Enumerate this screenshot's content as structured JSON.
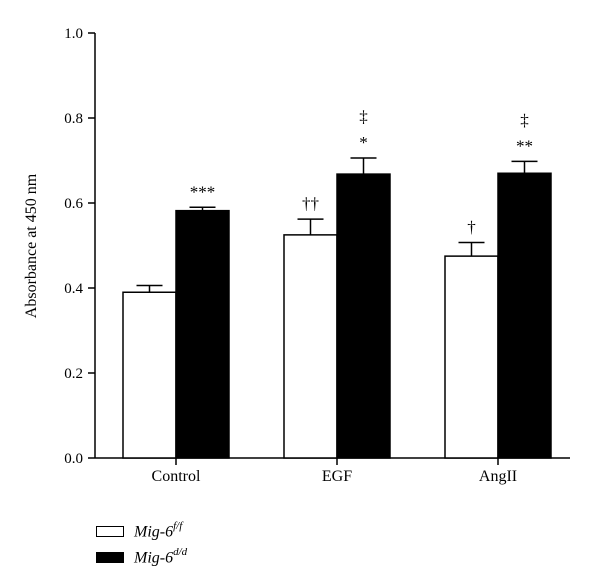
{
  "chart_data": {
    "type": "bar",
    "ylabel": "Absorbance at 450 nm",
    "ylim": [
      0,
      1.0
    ],
    "yticks": [
      "0.0",
      "0.2",
      "0.4",
      "0.6",
      "0.8",
      "1.0"
    ],
    "categories": [
      "Control",
      "EGF",
      "AngII"
    ],
    "series": [
      {
        "name": "Mig-6f/f",
        "base": "Mig-6",
        "sup": "f/f",
        "fill": "#ffffff",
        "values": [
          0.39,
          0.525,
          0.475
        ],
        "errors": [
          0.016,
          0.037,
          0.032
        ],
        "annotations": [
          [],
          [
            "††"
          ],
          [
            "†"
          ]
        ]
      },
      {
        "name": "Mig-6d/d",
        "base": "Mig-6",
        "sup": "d/d",
        "fill": "#000000",
        "values": [
          0.582,
          0.668,
          0.67
        ],
        "errors": [
          0.008,
          0.038,
          0.028
        ],
        "annotations": [
          [
            "***"
          ],
          [
            "*",
            "‡"
          ],
          [
            "**",
            "‡"
          ]
        ]
      }
    ],
    "grid": false,
    "legend_position": "bottom-left"
  }
}
